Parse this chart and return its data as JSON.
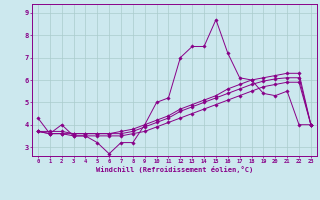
{
  "title": "",
  "xlabel": "Windchill (Refroidissement éolien,°C)",
  "ylabel": "",
  "bg_color": "#cce8ee",
  "line_color": "#880088",
  "grid_color": "#aacccc",
  "xlim": [
    -0.5,
    23.5
  ],
  "ylim": [
    2.6,
    9.4
  ],
  "yticks": [
    3,
    4,
    5,
    6,
    7,
    8,
    9
  ],
  "xticks": [
    0,
    1,
    2,
    3,
    4,
    5,
    6,
    7,
    8,
    9,
    10,
    11,
    12,
    13,
    14,
    15,
    16,
    17,
    18,
    19,
    20,
    21,
    22,
    23
  ],
  "series": [
    [
      4.3,
      3.6,
      4.0,
      3.5,
      3.5,
      3.2,
      2.7,
      3.2,
      3.2,
      4.0,
      5.0,
      5.2,
      7.0,
      7.5,
      7.5,
      8.7,
      7.2,
      6.1,
      6.0,
      5.4,
      5.3,
      5.5,
      4.0,
      4.0
    ],
    [
      3.7,
      3.6,
      3.6,
      3.5,
      3.5,
      3.5,
      3.5,
      3.5,
      3.6,
      3.7,
      3.9,
      4.1,
      4.3,
      4.5,
      4.7,
      4.9,
      5.1,
      5.3,
      5.5,
      5.7,
      5.8,
      5.9,
      5.9,
      4.0
    ],
    [
      3.7,
      3.6,
      3.6,
      3.6,
      3.6,
      3.6,
      3.6,
      3.6,
      3.7,
      3.9,
      4.1,
      4.3,
      4.6,
      4.8,
      5.0,
      5.2,
      5.4,
      5.6,
      5.8,
      5.95,
      6.05,
      6.1,
      6.1,
      4.0
    ],
    [
      3.7,
      3.7,
      3.7,
      3.6,
      3.6,
      3.6,
      3.6,
      3.7,
      3.8,
      4.0,
      4.2,
      4.4,
      4.7,
      4.9,
      5.1,
      5.3,
      5.6,
      5.8,
      6.0,
      6.1,
      6.2,
      6.3,
      6.3,
      4.0
    ]
  ]
}
